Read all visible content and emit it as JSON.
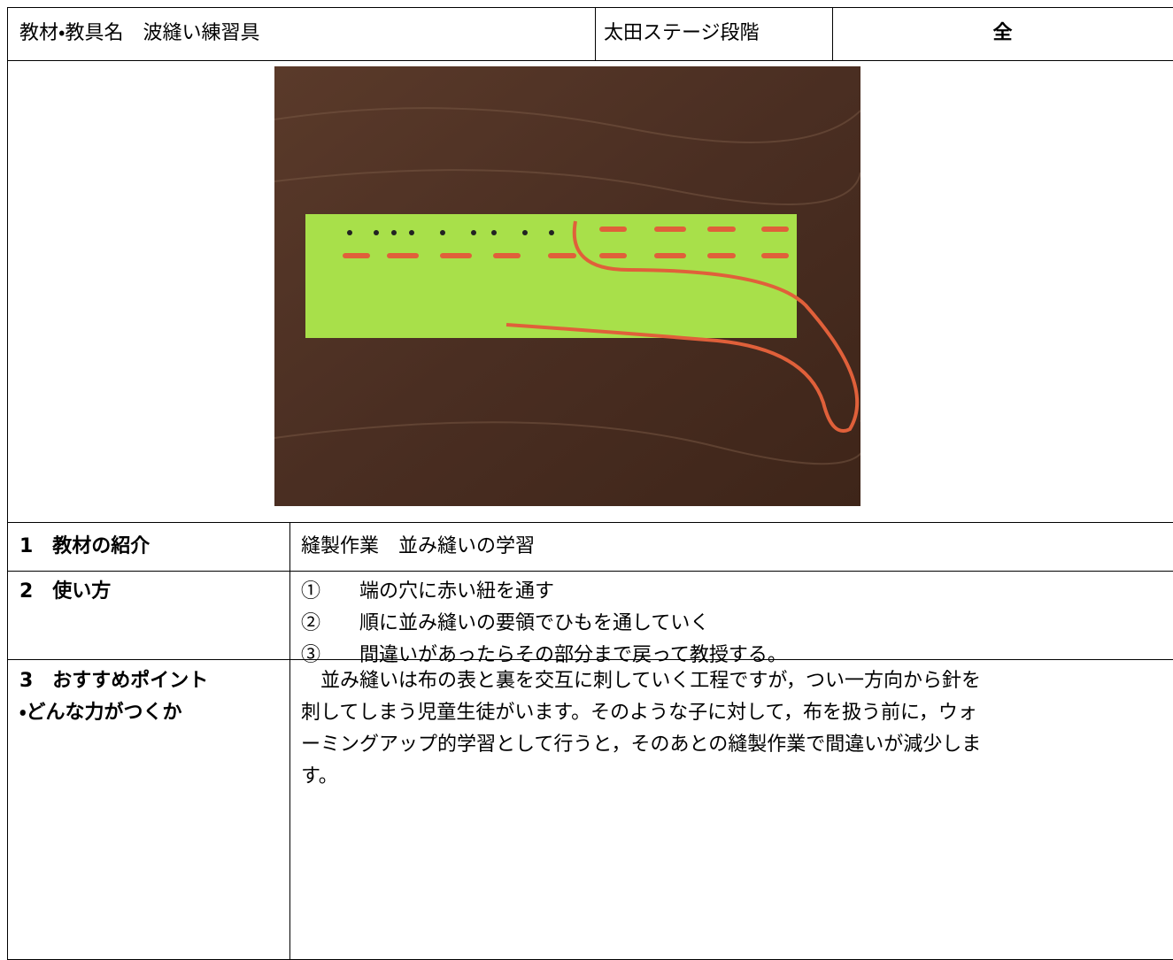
{
  "header": {
    "title": "教材・教具名　波縫い練習具",
    "stage_label": "太田ステージ段階",
    "stage_value": "全"
  },
  "rows": [
    {
      "labels": [
        "1　教材の紹介"
      ],
      "lines": [
        "縫製作業　並み縫いの学習"
      ]
    },
    {
      "labels": [
        "2　使い方"
      ],
      "lines": [
        "①　　端の穴に赤い紐を通す",
        "②　　順に並み縫いの要領でひもを通していく",
        "③　　間違いがあったらその部分まで戻って教授する。"
      ]
    },
    {
      "labels": [
        "3　おすすめポイント",
        "・どんな力がつくか"
      ],
      "lines": [
        "　並み縫いは布の表と裏を交互に刺していく工程ですが，つい一方向から針を",
        "刺してしまう児童生徒がいます。そのような子に対して，布を扱う前に，ウォ",
        "ーミングアップ的学習として行うと，そのあとの縫製作業で間違いが減少しま",
        "す。"
      ]
    }
  ]
}
